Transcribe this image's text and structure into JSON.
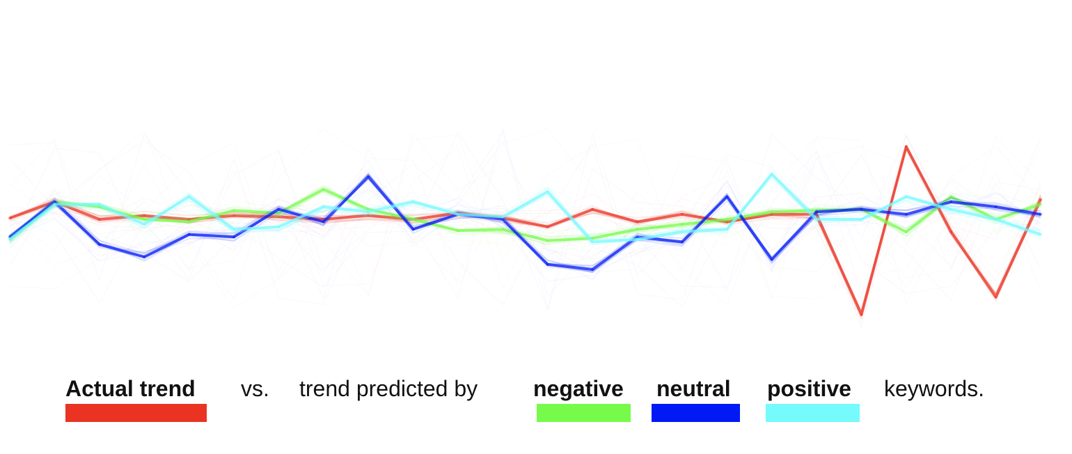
{
  "legend": {
    "actual": {
      "label": "Actual trend",
      "color": "#ea3323"
    },
    "vs": "vs.",
    "predicted_by": "trend predicted by",
    "negative": {
      "label": "negative",
      "color": "#77fb4a"
    },
    "neutral": {
      "label": "neutral",
      "color": "#0019f5"
    },
    "positive": {
      "label": "positive",
      "color": "#75fafd"
    },
    "suffix": "keywords."
  },
  "chart_data": {
    "type": "line",
    "x": [
      0,
      1,
      2,
      3,
      4,
      5,
      6,
      7,
      8,
      9,
      10,
      11,
      12,
      13,
      14,
      15,
      16,
      17,
      18,
      19,
      20,
      21,
      22,
      23
    ],
    "series": [
      {
        "name": "Actual trend",
        "color": "#ea3323",
        "values": [
          0.05,
          0.7,
          0.0,
          0.15,
          0.0,
          0.15,
          0.1,
          0.0,
          0.15,
          0.0,
          0.25,
          0.05,
          -0.3,
          0.4,
          -0.1,
          0.2,
          -0.1,
          0.2,
          0.2,
          -3.8,
          2.9,
          -0.5,
          -3.1,
          0.8
        ]
      },
      {
        "name": "negative",
        "color": "#77fb4a",
        "values": [
          -0.8,
          0.7,
          0.5,
          0.0,
          -0.1,
          0.35,
          0.25,
          1.2,
          0.4,
          0.0,
          -0.45,
          -0.4,
          -0.85,
          -0.75,
          -0.4,
          -0.2,
          0.0,
          0.3,
          0.35,
          0.4,
          -0.5,
          0.9,
          0.0,
          0.6
        ]
      },
      {
        "name": "neutral",
        "color": "#0019f5",
        "values": [
          -0.7,
          0.7,
          -1.0,
          -1.5,
          -0.6,
          -0.7,
          0.4,
          -0.1,
          1.7,
          -0.4,
          0.2,
          0.0,
          -1.8,
          -2.0,
          -0.7,
          -0.9,
          0.9,
          -1.6,
          0.3,
          0.4,
          0.2,
          0.7,
          0.5,
          0.2
        ]
      },
      {
        "name": "positive",
        "color": "#75fafd",
        "values": [
          -0.8,
          0.6,
          0.6,
          -0.2,
          0.9,
          -0.4,
          -0.3,
          0.5,
          0.3,
          0.7,
          0.2,
          0.1,
          1.1,
          -0.9,
          -0.8,
          -0.5,
          -0.4,
          1.8,
          0.0,
          0.0,
          0.9,
          0.4,
          0.0,
          -0.6
        ]
      }
    ],
    "ylim": [
      -5,
      5
    ],
    "grid": false,
    "legend_placement": "bottom"
  }
}
